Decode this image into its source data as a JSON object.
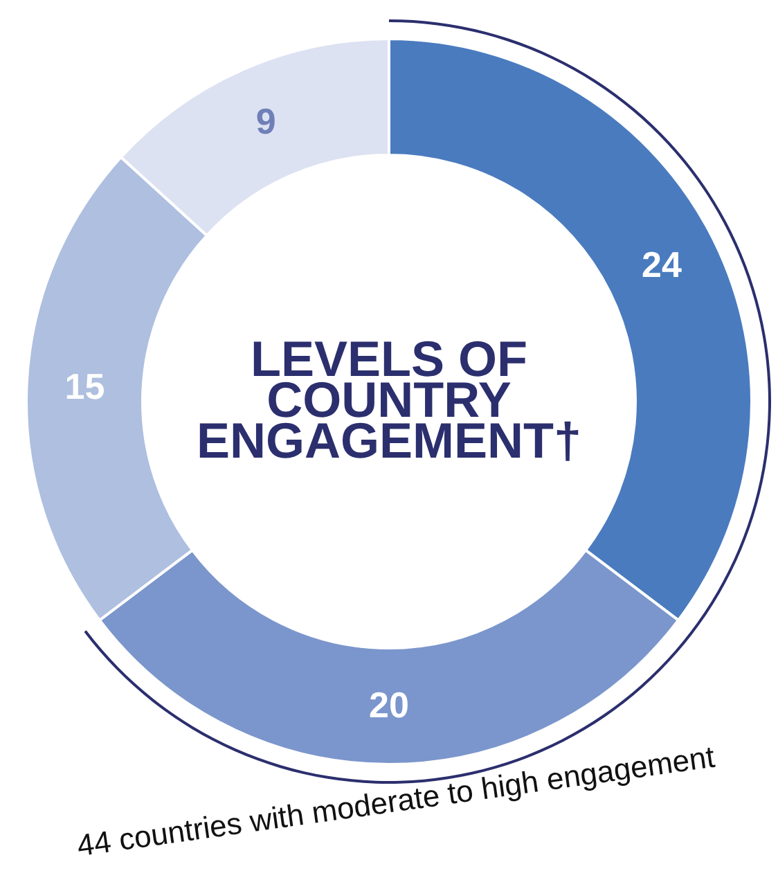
{
  "chart_data": {
    "type": "donut",
    "title": "LEVELS OF COUNTRY ENGAGEMENT†",
    "categories": [
      null,
      null,
      null,
      null
    ],
    "values": [
      24,
      20,
      15,
      9
    ],
    "colors": [
      "#4a7bbf",
      "#7b96cc",
      "#aebfe0",
      "#dde2f2"
    ],
    "data_labels": true,
    "annotations": [
      "44 countries with moderate to high engagement"
    ]
  }
}
